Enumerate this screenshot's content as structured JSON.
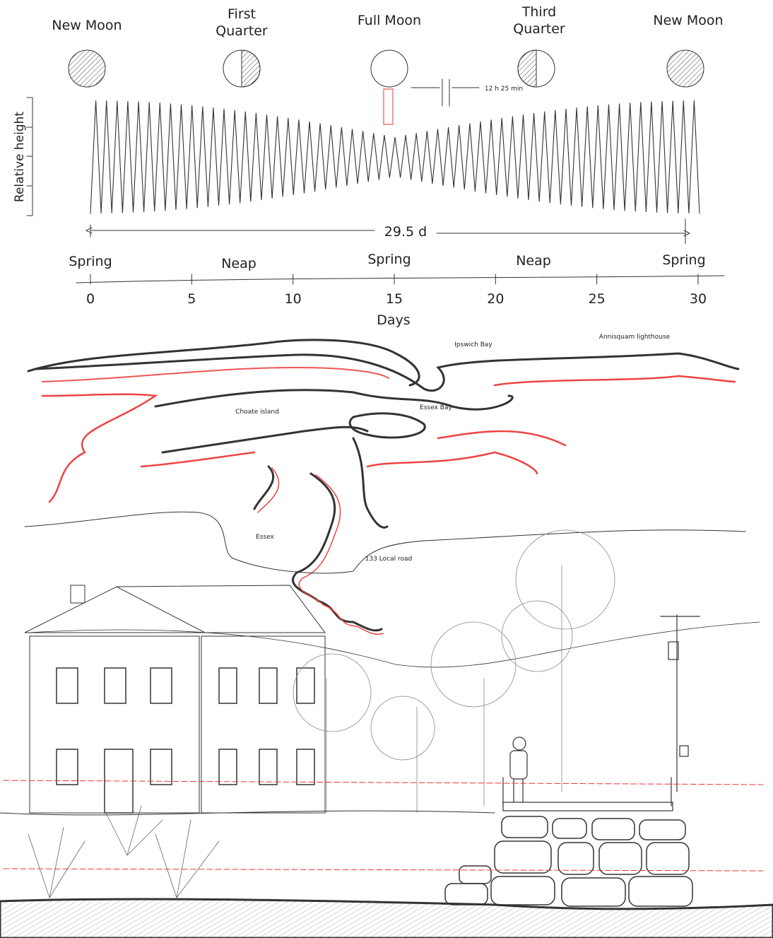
{
  "moon_phases": [
    "New Moon",
    "First Quarter",
    "Full Moon",
    "Third Quarter",
    "New Moon"
  ],
  "tide_chart": {
    "y_label": "Relative height",
    "period": "29.5 d",
    "semidiurnal_period": "12 h 25 min",
    "tide_types": [
      "Spring",
      "Neap",
      "Spring",
      "Neap",
      "Spring"
    ],
    "x_ticks": [
      0,
      5,
      10,
      15,
      20,
      25,
      30
    ],
    "x_label": "Days"
  },
  "map": {
    "labels": [
      "Ipswich Bay",
      "Annisquam lighthouse",
      "Choate island",
      "Essex Bay",
      "Essex",
      "133 Local road"
    ]
  }
}
